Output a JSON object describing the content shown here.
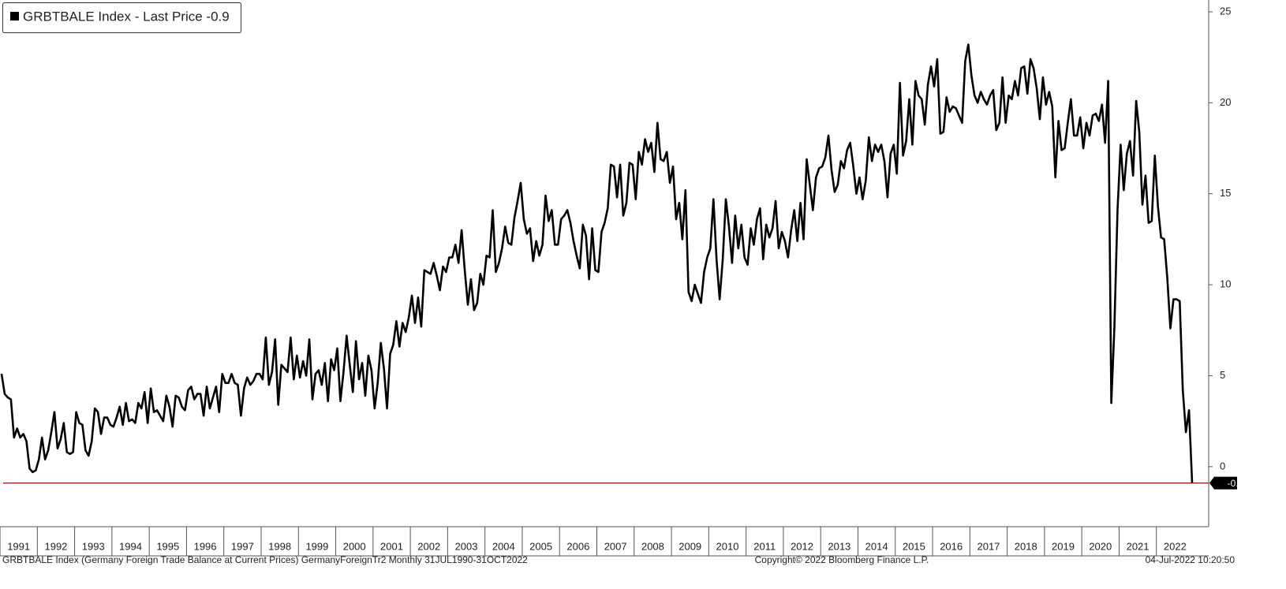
{
  "chart_data": {
    "type": "line",
    "series": [
      {
        "name": "GRBTBALE Index - Last Price -0.9",
        "color": "#000000",
        "values": [
          5.1,
          4.0,
          3.8,
          3.7,
          1.6,
          2.1,
          1.6,
          1.8,
          1.4,
          -0.1,
          -0.3,
          -0.2,
          0.4,
          1.6,
          0.4,
          0.9,
          1.9,
          3.0,
          1.0,
          1.5,
          2.4,
          0.8,
          0.7,
          0.8,
          3.0,
          2.4,
          2.3,
          0.9,
          0.6,
          1.4,
          3.2,
          3.0,
          1.8,
          2.7,
          2.7,
          2.3,
          2.2,
          2.7,
          3.3,
          2.3,
          3.5,
          2.5,
          2.6,
          2.4,
          3.5,
          3.2,
          4.1,
          2.4,
          4.3,
          3.0,
          3.1,
          2.8,
          2.5,
          3.9,
          3.3,
          2.2,
          3.9,
          3.8,
          3.3,
          3.1,
          4.2,
          4.4,
          3.7,
          4.0,
          4.0,
          2.8,
          4.4,
          3.2,
          3.8,
          4.4,
          3.0,
          5.1,
          4.6,
          4.6,
          5.1,
          4.6,
          4.5,
          2.8,
          4.3,
          4.9,
          4.5,
          4.7,
          5.1,
          5.1,
          4.8,
          7.1,
          4.5,
          5.2,
          7.0,
          3.4,
          5.6,
          5.4,
          5.2,
          7.1,
          4.8,
          6.1,
          4.9,
          5.8,
          5.0,
          7.0,
          3.7,
          5.1,
          5.3,
          4.5,
          5.7,
          3.6,
          5.9,
          5.3,
          6.5,
          3.6,
          5.2,
          7.2,
          5.6,
          4.1,
          6.9,
          4.8,
          5.7,
          3.9,
          6.1,
          5.3,
          3.2,
          4.6,
          6.8,
          5.4,
          3.2,
          6.2,
          6.7,
          8.0,
          6.6,
          7.9,
          7.4,
          8.2,
          9.4,
          7.9,
          9.3,
          7.7,
          10.8,
          10.7,
          10.6,
          11.2,
          10.5,
          9.7,
          11.0,
          10.7,
          11.5,
          11.5,
          12.2,
          11.2,
          13.0,
          10.8,
          8.9,
          10.3,
          8.6,
          9.0,
          10.6,
          10.0,
          11.6,
          11.5,
          14.1,
          10.7,
          11.2,
          12.0,
          13.2,
          12.3,
          12.2,
          13.7,
          14.6,
          15.6,
          13.6,
          12.8,
          13.1,
          11.3,
          12.4,
          11.6,
          12.2,
          14.9,
          13.5,
          14.1,
          12.2,
          12.2,
          13.6,
          13.8,
          14.1,
          13.4,
          12.4,
          11.6,
          10.9,
          13.3,
          12.7,
          10.3,
          13.1,
          10.8,
          10.7,
          12.9,
          13.4,
          14.2,
          16.6,
          16.5,
          14.8,
          16.6,
          13.8,
          14.5,
          16.7,
          16.6,
          14.7,
          17.3,
          16.6,
          18.0,
          17.3,
          17.8,
          16.2,
          18.9,
          16.9,
          16.8,
          17.3,
          15.6,
          16.5,
          13.6,
          14.5,
          12.5,
          15.2,
          9.6,
          9.1,
          10.0,
          9.5,
          9.0,
          10.7,
          11.5,
          12.0,
          14.7,
          11.4,
          9.2,
          11.4,
          14.7,
          13.2,
          11.2,
          13.8,
          12.0,
          13.3,
          11.5,
          11.1,
          13.1,
          12.2,
          13.6,
          14.2,
          11.4,
          13.3,
          12.6,
          13.1,
          14.6,
          12.0,
          12.9,
          12.4,
          11.5,
          13.0,
          14.1,
          12.4,
          14.5,
          12.5,
          16.9,
          15.5,
          14.1,
          15.9,
          16.4,
          16.5,
          17.0,
          18.2,
          16.3,
          15.1,
          15.5,
          16.8,
          16.4,
          17.4,
          17.8,
          16.5,
          15.0,
          15.9,
          14.7,
          15.7,
          18.1,
          16.8,
          17.7,
          17.3,
          17.7,
          16.8,
          14.8,
          17.2,
          17.7,
          16.1,
          21.1,
          17.1,
          17.9,
          20.2,
          17.7,
          21.2,
          20.4,
          20.2,
          18.8,
          21.0,
          22.0,
          20.9,
          22.4,
          18.3,
          18.4,
          20.3,
          19.5,
          19.8,
          19.7,
          19.3,
          18.9,
          22.3,
          23.2,
          21.5,
          20.4,
          20.0,
          20.6,
          20.2,
          19.9,
          20.4,
          20.7,
          18.5,
          18.9,
          21.4,
          18.9,
          20.4,
          20.2,
          21.2,
          20.4,
          21.9,
          22.0,
          20.5,
          22.4,
          21.9,
          20.8,
          19.1,
          21.4,
          19.9,
          20.6,
          19.8,
          15.9,
          19.0,
          17.4,
          17.5,
          18.9,
          20.2,
          18.2,
          18.2,
          19.2,
          17.5,
          18.9,
          18.2,
          19.3,
          19.4,
          19.0,
          19.9,
          17.8,
          21.2,
          3.5,
          7.7,
          14.1,
          17.7,
          15.2,
          17.2,
          17.9,
          16.0,
          20.1,
          18.4,
          14.4,
          16.0,
          13.4,
          13.5,
          17.1,
          14.3,
          12.6,
          12.5,
          10.4,
          7.6,
          9.2,
          9.2,
          9.1,
          4.2,
          1.9,
          3.1,
          -0.9
        ]
      }
    ],
    "categories": [
      null,
      null,
      null,
      null,
      null,
      null,
      null,
      null,
      null,
      null,
      null,
      "1991",
      null,
      null,
      null,
      null,
      null,
      null,
      null,
      null,
      null,
      null,
      null,
      "1992",
      null,
      null,
      null,
      null,
      null,
      null,
      null,
      null,
      null,
      null,
      null,
      "1993",
      null,
      null,
      null,
      null,
      null,
      null,
      null,
      null,
      null,
      null,
      null,
      "1994",
      null,
      null,
      null,
      null,
      null,
      null,
      null,
      null,
      null,
      null,
      null,
      "1995",
      null,
      null,
      null,
      null,
      null,
      null,
      null,
      null,
      null,
      null,
      null,
      "1996",
      null,
      null,
      null,
      null,
      null,
      null,
      null,
      null,
      null,
      null,
      null,
      "1997",
      null,
      null,
      null,
      null,
      null,
      null,
      null,
      null,
      null,
      null,
      null,
      "1998",
      null,
      null,
      null,
      null,
      null,
      null,
      null,
      null,
      null,
      null,
      null,
      "1999",
      null,
      null,
      null,
      null,
      null,
      null,
      null,
      null,
      null,
      null,
      null,
      "2000",
      null,
      null,
      null,
      null,
      null,
      null,
      null,
      null,
      null,
      null,
      null,
      "2001",
      null,
      null,
      null,
      null,
      null,
      null,
      null,
      null,
      null,
      null,
      null,
      "2002",
      null,
      null,
      null,
      null,
      null,
      null,
      null,
      null,
      null,
      null,
      null,
      "2003",
      null,
      null,
      null,
      null,
      null,
      null,
      null,
      null,
      null,
      null,
      null,
      "2004",
      null,
      null,
      null,
      null,
      null,
      null,
      null,
      null,
      null,
      null,
      null,
      "2005",
      null,
      null,
      null,
      null,
      null,
      null,
      null,
      null,
      null,
      null,
      null,
      "2006",
      null,
      null,
      null,
      null,
      null,
      null,
      null,
      null,
      null,
      null,
      null,
      "2007",
      null,
      null,
      null,
      null,
      null,
      null,
      null,
      null,
      null,
      null,
      null,
      "2008",
      null,
      null,
      null,
      null,
      null,
      null,
      null,
      null,
      null,
      null,
      null,
      "2009",
      null,
      null,
      null,
      null,
      null,
      null,
      null,
      null,
      null,
      null,
      null,
      "2010",
      null,
      null,
      null,
      null,
      null,
      null,
      null,
      null,
      null,
      null,
      null,
      "2011",
      null,
      null,
      null,
      null,
      null,
      null,
      null,
      null,
      null,
      null,
      null,
      "2012",
      null,
      null,
      null,
      null,
      null,
      null,
      null,
      null,
      null,
      null,
      null,
      "2013",
      null,
      null,
      null,
      null,
      null,
      null,
      null,
      null,
      null,
      null,
      null,
      "2014",
      null,
      null,
      null,
      null,
      null,
      null,
      null,
      null,
      null,
      null,
      null,
      "2015",
      null,
      null,
      null,
      null,
      null,
      null,
      null,
      null,
      null,
      null,
      null,
      "2016",
      null,
      null,
      null,
      null,
      null,
      null,
      null,
      null,
      null,
      null,
      null,
      "2017",
      null,
      null,
      null,
      null,
      null,
      null,
      null,
      null,
      null,
      null,
      null,
      "2018",
      null,
      null,
      null,
      null,
      null,
      null,
      null,
      null,
      null,
      null,
      null,
      "2019",
      null,
      null,
      null,
      null,
      null,
      null,
      null,
      null,
      null,
      null,
      null,
      "2020",
      null,
      null,
      null,
      null,
      null,
      null,
      null,
      null,
      null,
      null,
      null,
      "2021",
      null,
      null,
      null,
      null,
      null,
      null,
      null,
      null,
      null,
      null,
      null,
      "2022"
    ],
    "ylim": [
      -3.3,
      25.65
    ],
    "yticks": [
      0,
      5,
      10,
      15,
      20,
      25
    ],
    "y_axis_side": "right",
    "last_price_line_color": "#c00000",
    "footer_left": "GRBTBALE Index (Germany Foreign Trade Balance at Current Prices) GermanyForeignTr2  Monthly 31JUL1990-31OCT2022",
    "footer_center": "Copyright© 2022 Bloomberg Finance L.P.",
    "footer_right": "04-Jul-2022 10:20:50"
  }
}
